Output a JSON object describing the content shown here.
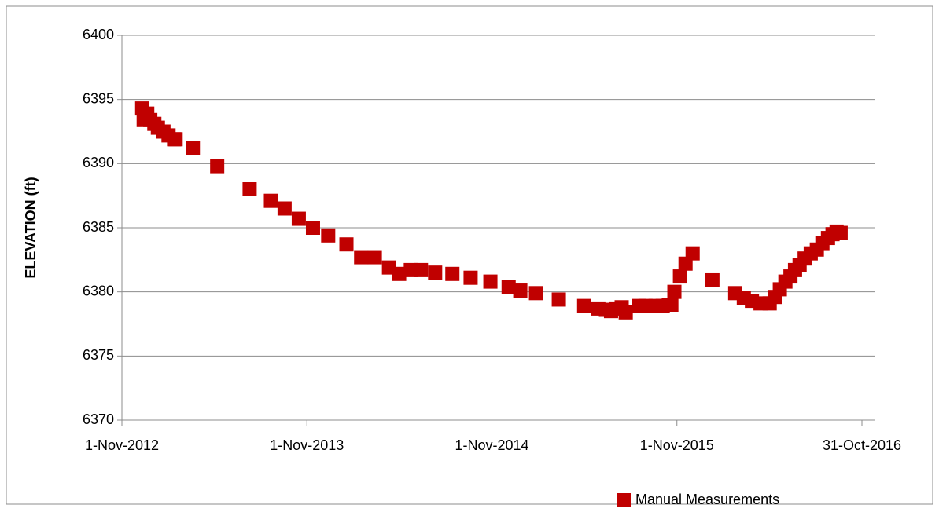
{
  "chart_data": {
    "type": "scatter",
    "ylabel": "ELEVATION (ft)",
    "series": [
      {
        "name": "Manual Measurements",
        "color": "#c00000",
        "x": [
          "2012-12-11",
          "2012-12-14",
          "2012-12-21",
          "2012-12-27",
          "2013-01-04",
          "2013-01-11",
          "2013-01-22",
          "2013-02-01",
          "2013-02-12",
          "2013-02-15",
          "2013-03-21",
          "2013-05-08",
          "2013-07-11",
          "2013-08-22",
          "2013-09-18",
          "2013-10-16",
          "2013-11-13",
          "2013-12-13",
          "2014-01-18",
          "2014-02-16",
          "2014-03-15",
          "2014-04-12",
          "2014-05-02",
          "2014-05-25",
          "2014-06-14",
          "2014-07-12",
          "2014-08-15",
          "2014-09-20",
          "2014-10-29",
          "2014-12-04",
          "2014-12-27",
          "2015-01-27",
          "2015-03-13",
          "2015-05-02",
          "2015-05-30",
          "2015-06-14",
          "2015-06-24",
          "2015-07-04",
          "2015-07-15",
          "2015-07-23",
          "2015-08-18",
          "2015-08-31",
          "2015-09-20",
          "2015-10-04",
          "2015-10-16",
          "2015-10-21",
          "2015-10-27",
          "2015-11-07",
          "2015-11-18",
          "2015-12-02",
          "2016-01-10",
          "2016-02-24",
          "2016-03-12",
          "2016-03-28",
          "2016-04-14",
          "2016-05-02",
          "2016-05-12",
          "2016-05-22",
          "2016-06-02",
          "2016-06-12",
          "2016-06-21",
          "2016-06-30",
          "2016-07-10",
          "2016-07-22",
          "2016-08-03",
          "2016-08-14",
          "2016-08-25",
          "2016-09-03",
          "2016-09-11",
          "2016-09-19"
        ],
        "values": [
          6394.3,
          6393.4,
          6393.9,
          6393.4,
          6393.1,
          6392.8,
          6392.5,
          6392.2,
          6391.9,
          6391.9,
          6391.2,
          6389.8,
          6388.0,
          6387.1,
          6386.5,
          6385.7,
          6385.0,
          6384.4,
          6383.7,
          6382.7,
          6382.7,
          6381.9,
          6381.4,
          6381.7,
          6381.7,
          6381.5,
          6381.4,
          6381.1,
          6380.8,
          6380.4,
          6380.1,
          6379.9,
          6379.4,
          6378.9,
          6378.7,
          6378.6,
          6378.5,
          6378.7,
          6378.8,
          6378.4,
          6378.9,
          6378.9,
          6378.9,
          6378.9,
          6379.0,
          6379.0,
          6380.0,
          6381.2,
          6382.2,
          6383.0,
          6380.9,
          6379.9,
          6379.5,
          6379.3,
          6379.1,
          6379.1,
          6379.6,
          6380.2,
          6380.8,
          6381.2,
          6381.7,
          6382.1,
          6382.6,
          6383.0,
          6383.3,
          6383.8,
          6384.2,
          6384.5,
          6384.7,
          6384.6
        ]
      }
    ],
    "xlim": [
      "2012-11-01",
      "2016-10-31"
    ],
    "xticks": [
      {
        "value": "2012-11-01",
        "label": "1-Nov-2012"
      },
      {
        "value": "2013-11-01",
        "label": "1-Nov-2013"
      },
      {
        "value": "2014-11-01",
        "label": "1-Nov-2014"
      },
      {
        "value": "2015-11-01",
        "label": "1-Nov-2015"
      },
      {
        "value": "2016-10-31",
        "label": "31-Oct-2016"
      }
    ],
    "ylim": [
      6370,
      6400
    ],
    "yticks": [
      6370,
      6375,
      6380,
      6385,
      6390,
      6395,
      6400
    ],
    "grid": true,
    "legend": "bottom"
  }
}
